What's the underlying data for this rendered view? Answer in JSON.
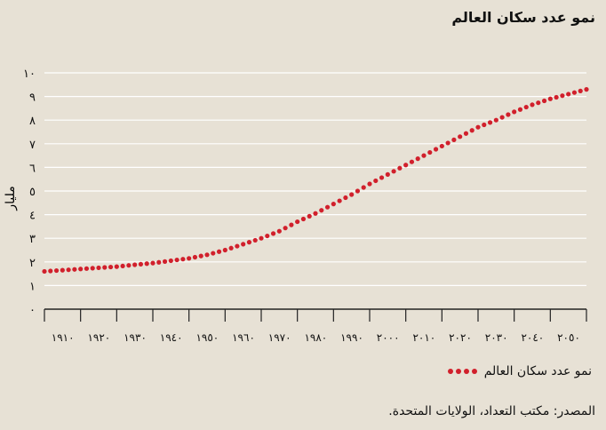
{
  "title": "نمو عدد سكان العالم",
  "legend_label": "نمو عدد سكان العالم",
  "source": "المصدر: مكتب التعداد، الولايات المتحدة.",
  "colors": {
    "series": "#d1202c",
    "background": "#e7e1d5",
    "grid": "#ffffff",
    "axis": "#222222"
  },
  "chart_data": {
    "type": "scatter",
    "ylabel": "مليار",
    "xlabel": "",
    "ylim": [
      0,
      10
    ],
    "xlim": [
      1900,
      2050
    ],
    "grid": true,
    "legend_position": "bottom-right",
    "y_ticks": [
      "٠",
      "١",
      "٢",
      "٣",
      "٤",
      "٥",
      "٦",
      "٧",
      "٨",
      "٩",
      "١٠"
    ],
    "x_tick_labels": [
      "١٩١٠",
      "١٩٢٠",
      "١٩٣٠",
      "١٩٤٠",
      "١٩٥٠",
      "١٩٦٠",
      "١٩٧٠",
      "١٩٨٠",
      "١٩٩٠",
      "٢٠٠٠",
      "٢٠١٠",
      "٢٠٢٠",
      "٢٠٣٠",
      "٢٠٤٠",
      "٢٠٥٠"
    ],
    "series": [
      {
        "name": "نمو عدد سكان العالم",
        "x": [
          1900,
          1905,
          1910,
          1915,
          1920,
          1925,
          1930,
          1935,
          1940,
          1945,
          1950,
          1955,
          1960,
          1965,
          1970,
          1975,
          1980,
          1985,
          1990,
          1995,
          2000,
          2005,
          2010,
          2015,
          2020,
          2025,
          2030,
          2035,
          2040,
          2045,
          2050
        ],
        "values": [
          1.6,
          1.65,
          1.7,
          1.75,
          1.8,
          1.88,
          1.95,
          2.05,
          2.15,
          2.3,
          2.5,
          2.75,
          3.0,
          3.3,
          3.7,
          4.05,
          4.45,
          4.85,
          5.3,
          5.7,
          6.1,
          6.5,
          6.9,
          7.3,
          7.7,
          8.0,
          8.35,
          8.65,
          8.9,
          9.1,
          9.3
        ]
      }
    ]
  }
}
